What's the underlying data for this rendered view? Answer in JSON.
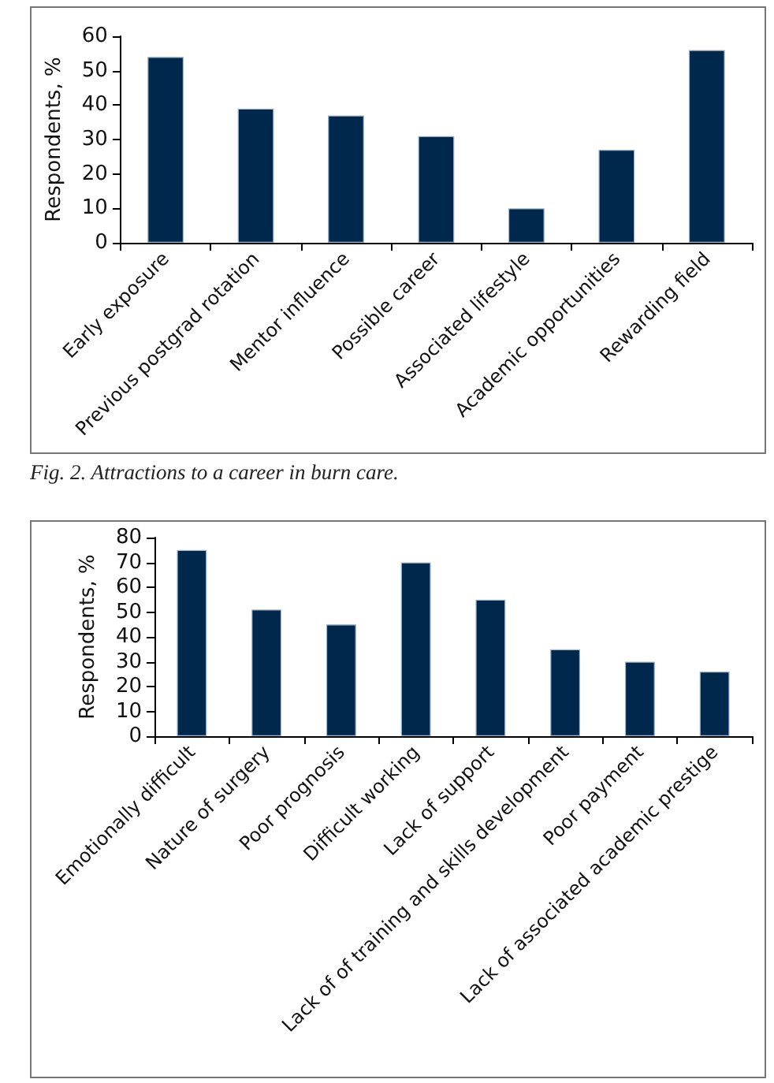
{
  "chart_data": [
    {
      "type": "bar",
      "ylabel": "Respondents, %",
      "categories": [
        "Early exposure",
        "Previous postgrad rotation",
        "Mentor influence",
        "Possible career",
        "Associated lifestyle",
        "Academic opportunities",
        "Rewarding field"
      ],
      "values": [
        54,
        39,
        37,
        31,
        10,
        27,
        56
      ],
      "color": "#00284d",
      "ylim": [
        0,
        60
      ],
      "yticks": [
        0,
        10,
        20,
        30,
        40,
        50,
        60
      ],
      "annotations": [
        "Fig. 2. Attractions to a career in burn care."
      ]
    },
    {
      "type": "bar",
      "ylabel": "Respondents, %",
      "categories": [
        "Emotionally difficult",
        "Nature of surgery",
        "Poor prognosis",
        "Difficult working",
        "Lack of support",
        "Lack of of training and skills development",
        "Poor payment",
        "Lack of associated academic prestige"
      ],
      "values": [
        75,
        51,
        45,
        70,
        55,
        35,
        30,
        26
      ],
      "color": "#00284d",
      "ylim": [
        0,
        80
      ],
      "yticks": [
        0,
        10,
        20,
        30,
        40,
        50,
        60,
        70,
        80
      ]
    }
  ]
}
